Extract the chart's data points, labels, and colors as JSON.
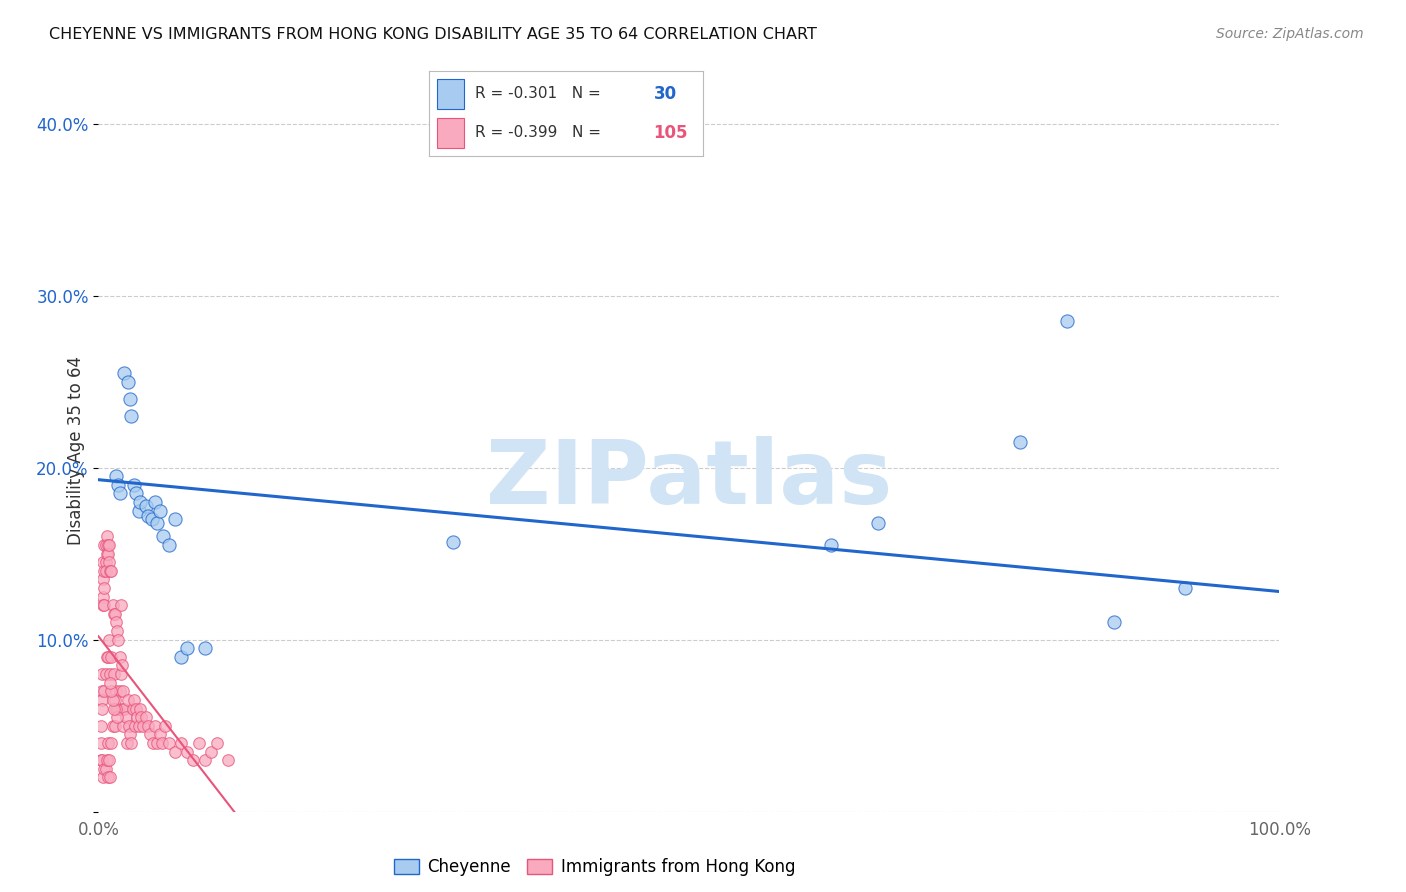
{
  "title": "CHEYENNE VS IMMIGRANTS FROM HONG KONG DISABILITY AGE 35 TO 64 CORRELATION CHART",
  "source": "Source: ZipAtlas.com",
  "ylabel": "Disability Age 35 to 64",
  "xlim": [
    0.0,
    1.0
  ],
  "ylim": [
    0.0,
    0.42
  ],
  "yticks": [
    0.0,
    0.1,
    0.2,
    0.3,
    0.4
  ],
  "ytick_labels": [
    "",
    "10.0%",
    "20.0%",
    "30.0%",
    "40.0%"
  ],
  "xticks": [
    0.0,
    0.25,
    0.5,
    0.75,
    1.0
  ],
  "xtick_labels": [
    "0.0%",
    "",
    "",
    "",
    "100.0%"
  ],
  "cheyenne_color": "#A8CCF0",
  "hk_color": "#F9AABF",
  "trend_cheyenne_color": "#2166CC",
  "trend_hk_color": "#E8547A",
  "watermark_text": "ZIPatlas",
  "watermark_color": "#D0E4F5",
  "cheyenne_x": [
    0.015,
    0.017,
    0.018,
    0.022,
    0.025,
    0.027,
    0.028,
    0.03,
    0.032,
    0.034,
    0.035,
    0.04,
    0.042,
    0.045,
    0.048,
    0.05,
    0.052,
    0.055,
    0.06,
    0.065,
    0.07,
    0.075,
    0.09,
    0.3,
    0.62,
    0.66,
    0.78,
    0.82,
    0.86,
    0.92
  ],
  "cheyenne_y": [
    0.195,
    0.19,
    0.185,
    0.255,
    0.25,
    0.24,
    0.23,
    0.19,
    0.185,
    0.175,
    0.18,
    0.178,
    0.172,
    0.17,
    0.18,
    0.168,
    0.175,
    0.16,
    0.155,
    0.17,
    0.09,
    0.095,
    0.095,
    0.157,
    0.155,
    0.168,
    0.215,
    0.285,
    0.11,
    0.13
  ],
  "hk_x": [
    0.002,
    0.002,
    0.002,
    0.003,
    0.003,
    0.003,
    0.003,
    0.003,
    0.004,
    0.004,
    0.004,
    0.004,
    0.004,
    0.005,
    0.005,
    0.005,
    0.005,
    0.005,
    0.005,
    0.006,
    0.006,
    0.006,
    0.006,
    0.006,
    0.007,
    0.007,
    0.007,
    0.007,
    0.008,
    0.008,
    0.008,
    0.008,
    0.008,
    0.009,
    0.009,
    0.009,
    0.009,
    0.01,
    0.01,
    0.01,
    0.011,
    0.011,
    0.011,
    0.012,
    0.012,
    0.013,
    0.013,
    0.014,
    0.014,
    0.015,
    0.015,
    0.016,
    0.016,
    0.017,
    0.017,
    0.018,
    0.018,
    0.019,
    0.019,
    0.02,
    0.02,
    0.021,
    0.021,
    0.022,
    0.023,
    0.024,
    0.025,
    0.026,
    0.027,
    0.028,
    0.029,
    0.03,
    0.031,
    0.032,
    0.033,
    0.034,
    0.035,
    0.036,
    0.038,
    0.04,
    0.042,
    0.044,
    0.046,
    0.048,
    0.05,
    0.052,
    0.054,
    0.056,
    0.06,
    0.065,
    0.07,
    0.075,
    0.08,
    0.085,
    0.09,
    0.095,
    0.1,
    0.11,
    0.015,
    0.016,
    0.014,
    0.013,
    0.012,
    0.011,
    0.01
  ],
  "hk_y": [
    0.05,
    0.04,
    0.03,
    0.08,
    0.07,
    0.065,
    0.06,
    0.03,
    0.145,
    0.135,
    0.125,
    0.12,
    0.02,
    0.155,
    0.14,
    0.13,
    0.12,
    0.07,
    0.025,
    0.155,
    0.145,
    0.14,
    0.08,
    0.025,
    0.16,
    0.15,
    0.09,
    0.03,
    0.155,
    0.15,
    0.09,
    0.04,
    0.02,
    0.155,
    0.145,
    0.1,
    0.03,
    0.14,
    0.08,
    0.02,
    0.14,
    0.09,
    0.04,
    0.12,
    0.05,
    0.115,
    0.08,
    0.115,
    0.05,
    0.11,
    0.07,
    0.105,
    0.06,
    0.1,
    0.06,
    0.09,
    0.07,
    0.12,
    0.08,
    0.085,
    0.06,
    0.07,
    0.05,
    0.06,
    0.055,
    0.04,
    0.065,
    0.05,
    0.045,
    0.04,
    0.06,
    0.065,
    0.05,
    0.06,
    0.055,
    0.05,
    0.06,
    0.055,
    0.05,
    0.055,
    0.05,
    0.045,
    0.04,
    0.05,
    0.04,
    0.045,
    0.04,
    0.05,
    0.04,
    0.035,
    0.04,
    0.035,
    0.03,
    0.04,
    0.03,
    0.035,
    0.04,
    0.03,
    0.06,
    0.055,
    0.065,
    0.06,
    0.065,
    0.07,
    0.075
  ],
  "trend_cheyenne_x0": 0.0,
  "trend_cheyenne_y0": 0.193,
  "trend_cheyenne_x1": 1.0,
  "trend_cheyenne_y1": 0.128,
  "trend_hk_x0": 0.0,
  "trend_hk_y0": 0.102,
  "trend_hk_x1": 0.115,
  "trend_hk_y1": 0.0
}
